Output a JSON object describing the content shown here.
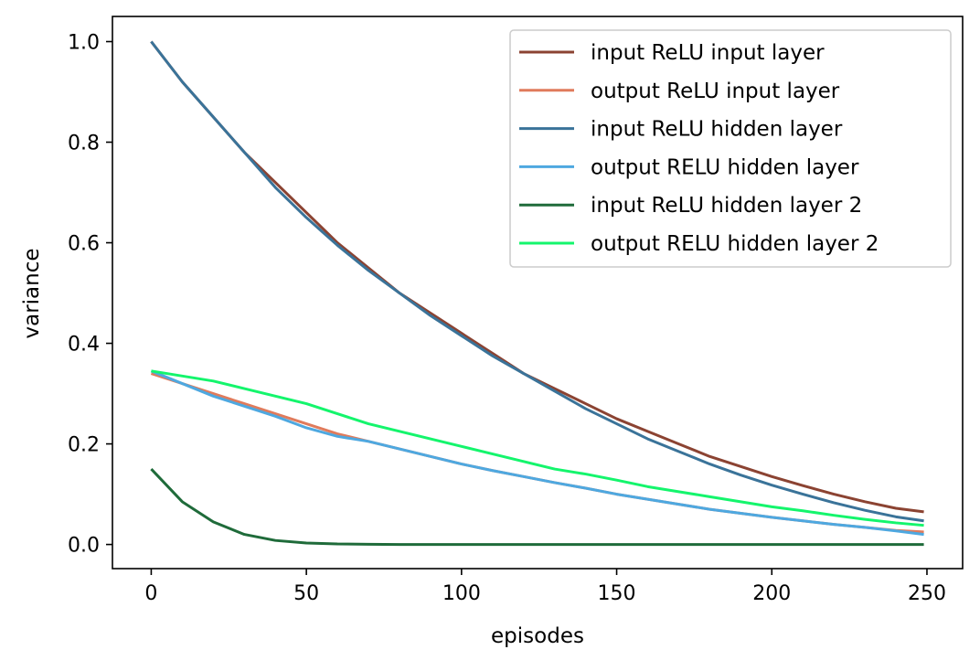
{
  "chart_data": {
    "type": "line",
    "title": "",
    "xlabel": "episodes",
    "ylabel": "variance",
    "xlim": [
      -12.5,
      261.5
    ],
    "ylim": [
      -0.048,
      1.05
    ],
    "xticks": [
      0,
      50,
      100,
      150,
      200,
      250
    ],
    "yticks": [
      0.0,
      0.2,
      0.4,
      0.6,
      0.8,
      1.0
    ],
    "xtick_labels": [
      "0",
      "50",
      "100",
      "150",
      "200",
      "250"
    ],
    "ytick_labels": [
      "0.0",
      "0.2",
      "0.4",
      "0.6",
      "0.8",
      "1.0"
    ],
    "grid": false,
    "legend_position": "top-right",
    "x": [
      0,
      10,
      20,
      30,
      40,
      50,
      60,
      70,
      80,
      90,
      100,
      110,
      120,
      130,
      140,
      150,
      160,
      170,
      180,
      190,
      200,
      210,
      220,
      230,
      240,
      249
    ],
    "series": [
      {
        "name": "input ReLU input layer",
        "color": "#8b4332",
        "values": [
          1.0,
          0.92,
          0.85,
          0.78,
          0.72,
          0.66,
          0.6,
          0.55,
          0.5,
          0.46,
          0.42,
          0.38,
          0.34,
          0.31,
          0.28,
          0.25,
          0.225,
          0.2,
          0.175,
          0.155,
          0.135,
          0.117,
          0.1,
          0.085,
          0.072,
          0.065
        ]
      },
      {
        "name": "output ReLU input layer",
        "color": "#e07b5c",
        "values": [
          0.34,
          0.32,
          0.3,
          0.28,
          0.26,
          0.24,
          0.22,
          0.205,
          0.19,
          0.175,
          0.16,
          0.147,
          0.135,
          0.123,
          0.112,
          0.1,
          0.09,
          0.08,
          0.07,
          0.062,
          0.054,
          0.047,
          0.04,
          0.034,
          0.028,
          0.025
        ]
      },
      {
        "name": "input ReLU hidden layer",
        "color": "#3a7399",
        "values": [
          1.0,
          0.92,
          0.85,
          0.78,
          0.71,
          0.65,
          0.595,
          0.545,
          0.5,
          0.455,
          0.415,
          0.375,
          0.34,
          0.305,
          0.27,
          0.24,
          0.21,
          0.185,
          0.16,
          0.138,
          0.118,
          0.1,
          0.083,
          0.068,
          0.055,
          0.047
        ]
      },
      {
        "name": "output RELU hidden layer",
        "color": "#4ea8e0",
        "values": [
          0.345,
          0.32,
          0.295,
          0.275,
          0.255,
          0.232,
          0.215,
          0.205,
          0.19,
          0.175,
          0.16,
          0.147,
          0.135,
          0.123,
          0.112,
          0.1,
          0.09,
          0.08,
          0.07,
          0.062,
          0.054,
          0.047,
          0.04,
          0.034,
          0.027,
          0.02
        ]
      },
      {
        "name": "input ReLU hidden layer 2",
        "color": "#1f6b3a",
        "values": [
          0.15,
          0.085,
          0.045,
          0.02,
          0.008,
          0.003,
          0.001,
          0.0005,
          0.0,
          0.0,
          0.0,
          0.0,
          0.0,
          0.0,
          0.0,
          0.0,
          0.0,
          0.0,
          0.0,
          0.0,
          0.0,
          0.0,
          0.0,
          0.0,
          0.0,
          0.0
        ]
      },
      {
        "name": "output RELU hidden layer 2",
        "color": "#14f56c",
        "values": [
          0.345,
          0.335,
          0.325,
          0.31,
          0.295,
          0.28,
          0.26,
          0.24,
          0.225,
          0.21,
          0.195,
          0.18,
          0.165,
          0.15,
          0.14,
          0.128,
          0.115,
          0.105,
          0.095,
          0.085,
          0.075,
          0.067,
          0.058,
          0.05,
          0.043,
          0.038
        ]
      }
    ]
  }
}
